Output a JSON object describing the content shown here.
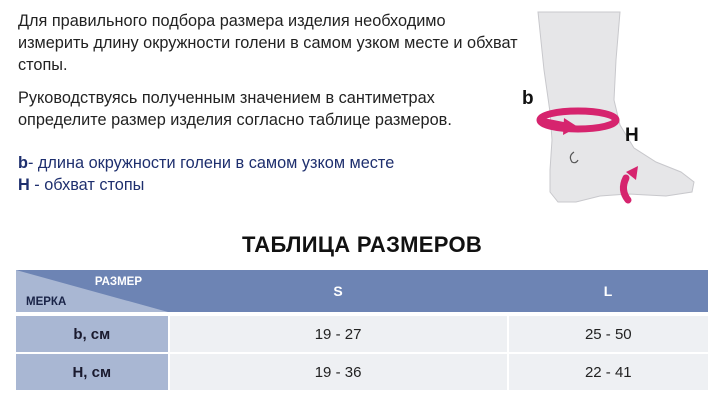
{
  "intro": {
    "paragraph1": "Для правильного подбора размера изделия необходимо измерить длину окружности голени в самом узком месте и обхват стопы.",
    "paragraph2": "Руководствуясь полученным значением в сантиметрах определите размер изделия согласно таблице размеров."
  },
  "legend": {
    "b_key": "b",
    "b_text": "- длина окружности голени в самом узком месте",
    "h_key": "H",
    "h_text": " - обхват стопы"
  },
  "illustration": {
    "label_b": "b",
    "label_h": "H",
    "accent_color": "#d6246e"
  },
  "table": {
    "title": "ТАБЛИЦА РАЗМЕРОВ",
    "corner_size_label": "РАЗМЕР",
    "corner_measure_label": "МЕРКА",
    "columns": [
      "S",
      "L"
    ],
    "rows": [
      {
        "label": "b, см",
        "values": [
          "19 - 27",
          "25 - 50"
        ]
      },
      {
        "label": "H, см",
        "values": [
          "19 - 36",
          "22 - 41"
        ]
      }
    ],
    "colors": {
      "header": "#6d84b4",
      "row_header": "#a9b7d3",
      "cell": "#eef0f3"
    }
  }
}
